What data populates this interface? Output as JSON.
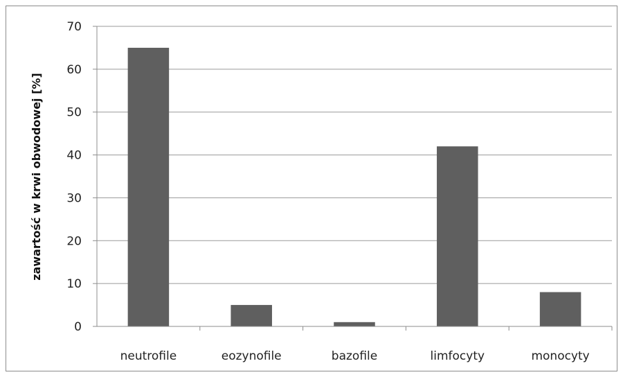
{
  "chart_data": {
    "type": "bar",
    "title": "",
    "xlabel": "",
    "ylabel": "zawartość w krwi obwodowej [%]",
    "categories": [
      "neutrofile",
      "eozynofile",
      "bazofile",
      "limfocyty",
      "monocyty"
    ],
    "values": [
      65,
      5,
      1,
      42,
      8
    ],
    "ylim": [
      0,
      70
    ],
    "yticks": [
      0,
      10,
      20,
      30,
      40,
      50,
      60,
      70
    ],
    "grid": true,
    "legend": "none",
    "colors": {
      "bar": "#5f5f5f",
      "grid": "#9a9a9a",
      "axis": "#8c8c8c"
    }
  }
}
